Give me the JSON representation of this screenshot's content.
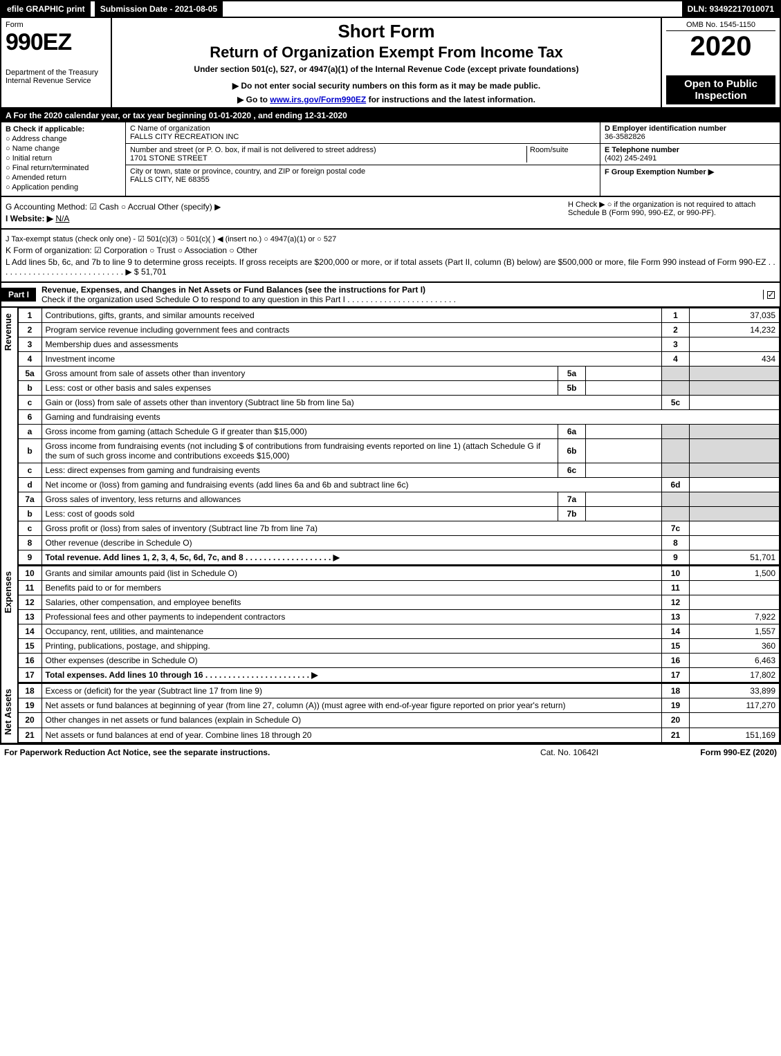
{
  "topbar": {
    "efile": "efile GRAPHIC print",
    "submission": "Submission Date - 2021-08-05",
    "dln": "DLN: 93492217010071"
  },
  "header": {
    "form_word": "Form",
    "form_number": "990EZ",
    "dept1": "Department of the Treasury",
    "dept2": "Internal Revenue Service",
    "short_form": "Short Form",
    "return_title": "Return of Organization Exempt From Income Tax",
    "under": "Under section 501(c), 527, or 4947(a)(1) of the Internal Revenue Code (except private foundations)",
    "warn": "▶ Do not enter social security numbers on this form as it may be made public.",
    "goto_pre": "▶ Go to ",
    "goto_link": "www.irs.gov/Form990EZ",
    "goto_post": " for instructions and the latest information.",
    "omb": "OMB No. 1545-1150",
    "year": "2020",
    "open": "Open to Public Inspection"
  },
  "period": "A For the 2020 calendar year, or tax year beginning 01-01-2020 , and ending 12-31-2020",
  "sectionB": {
    "header": "B  Check if applicable:",
    "items": [
      "Address change",
      "Name change",
      "Initial return",
      "Final return/terminated",
      "Amended return",
      "Application pending"
    ]
  },
  "sectionC": {
    "c_label": "C Name of organization",
    "c_value": "FALLS CITY RECREATION INC",
    "addr_label": "Number and street (or P. O. box, if mail is not delivered to street address)",
    "addr_value": "1701 STONE STREET",
    "room_label": "Room/suite",
    "city_label": "City or town, state or province, country, and ZIP or foreign postal code",
    "city_value": "FALLS CITY, NE  68355"
  },
  "sectionD": {
    "d_label": "D Employer identification number",
    "d_value": "36-3582826",
    "e_label": "E Telephone number",
    "e_value": "(402) 245-2491",
    "f_label": "F Group Exemption Number  ▶"
  },
  "meta": {
    "g": "G Accounting Method:  ☑ Cash  ○ Accrual  Other (specify) ▶ ",
    "h": "H  Check ▶  ○  if the organization is not required to attach Schedule B (Form 990, 990-EZ, or 990-PF).",
    "i_pre": "I Website: ▶",
    "i_val": "N/A",
    "j": "J Tax-exempt status (check only one) -  ☑ 501(c)(3)  ○  501(c)(  ) ◀ (insert no.)  ○  4947(a)(1) or  ○  527",
    "k": "K Form of organization:   ☑ Corporation  ○ Trust  ○ Association  ○ Other ",
    "l": "L Add lines 5b, 6c, and 7b to line 9 to determine gross receipts. If gross receipts are $200,000 or more, or if total assets (Part II, column (B) below) are $500,000 or more, file Form 990 instead of Form 990-EZ  . . . . . . . . . . . . . . . . . . . . . . . . . . . .  ▶ $ 51,701"
  },
  "partI": {
    "tag": "Part I",
    "title": "Revenue, Expenses, and Changes in Net Assets or Fund Balances (see the instructions for Part I)",
    "check_line": "Check if the organization used Schedule O to respond to any question in this Part I . . . . . . . . . . . . . . . . . . . . . . . ."
  },
  "sections": {
    "revenue": "Revenue",
    "expenses": "Expenses",
    "netassets": "Net Assets"
  },
  "rows": [
    {
      "n": "1",
      "d": "Contributions, gifts, grants, and similar amounts received",
      "r": "1",
      "v": "37,035"
    },
    {
      "n": "2",
      "d": "Program service revenue including government fees and contracts",
      "r": "2",
      "v": "14,232"
    },
    {
      "n": "3",
      "d": "Membership dues and assessments",
      "r": "3",
      "v": ""
    },
    {
      "n": "4",
      "d": "Investment income",
      "r": "4",
      "v": "434"
    },
    {
      "n": "5a",
      "d": "Gross amount from sale of assets other than inventory",
      "sr": "5a",
      "sv": "",
      "shade": true
    },
    {
      "n": "b",
      "d": "Less: cost or other basis and sales expenses",
      "sr": "5b",
      "sv": "",
      "shade": true
    },
    {
      "n": "c",
      "d": "Gain or (loss) from sale of assets other than inventory (Subtract line 5b from line 5a)",
      "r": "5c",
      "v": ""
    },
    {
      "n": "6",
      "d": "Gaming and fundraising events",
      "noval": true
    },
    {
      "n": "a",
      "d": "Gross income from gaming (attach Schedule G if greater than $15,000)",
      "sr": "6a",
      "sv": "",
      "shade": true
    },
    {
      "n": "b",
      "d": "Gross income from fundraising events (not including $                              of contributions from fundraising events reported on line 1) (attach Schedule G if the sum of such gross income and contributions exceeds $15,000)",
      "sr": "6b",
      "sv": "",
      "shade": true
    },
    {
      "n": "c",
      "d": "Less: direct expenses from gaming and fundraising events",
      "sr": "6c",
      "sv": "",
      "shade": true
    },
    {
      "n": "d",
      "d": "Net income or (loss) from gaming and fundraising events (add lines 6a and 6b and subtract line 6c)",
      "r": "6d",
      "v": ""
    },
    {
      "n": "7a",
      "d": "Gross sales of inventory, less returns and allowances",
      "sr": "7a",
      "sv": "",
      "shade": true
    },
    {
      "n": "b",
      "d": "Less: cost of goods sold",
      "sr": "7b",
      "sv": "",
      "shade": true
    },
    {
      "n": "c",
      "d": "Gross profit or (loss) from sales of inventory (Subtract line 7b from line 7a)",
      "r": "7c",
      "v": ""
    },
    {
      "n": "8",
      "d": "Other revenue (describe in Schedule O)",
      "r": "8",
      "v": ""
    },
    {
      "n": "9",
      "d": "Total revenue. Add lines 1, 2, 3, 4, 5c, 6d, 7c, and 8   . . . . . . . . . . . . . . . . . . .  ▶",
      "r": "9",
      "v": "51,701",
      "bold": true
    }
  ],
  "exp_rows": [
    {
      "n": "10",
      "d": "Grants and similar amounts paid (list in Schedule O)",
      "r": "10",
      "v": "1,500"
    },
    {
      "n": "11",
      "d": "Benefits paid to or for members",
      "r": "11",
      "v": ""
    },
    {
      "n": "12",
      "d": "Salaries, other compensation, and employee benefits",
      "r": "12",
      "v": ""
    },
    {
      "n": "13",
      "d": "Professional fees and other payments to independent contractors",
      "r": "13",
      "v": "7,922"
    },
    {
      "n": "14",
      "d": "Occupancy, rent, utilities, and maintenance",
      "r": "14",
      "v": "1,557"
    },
    {
      "n": "15",
      "d": "Printing, publications, postage, and shipping.",
      "r": "15",
      "v": "360"
    },
    {
      "n": "16",
      "d": "Other expenses (describe in Schedule O)",
      "r": "16",
      "v": "6,463"
    },
    {
      "n": "17",
      "d": "Total expenses. Add lines 10 through 16    . . . . . . . . . . . . . . . . . . . . . . .  ▶",
      "r": "17",
      "v": "17,802",
      "bold": true
    }
  ],
  "na_rows": [
    {
      "n": "18",
      "d": "Excess or (deficit) for the year (Subtract line 17 from line 9)",
      "r": "18",
      "v": "33,899"
    },
    {
      "n": "19",
      "d": "Net assets or fund balances at beginning of year (from line 27, column (A)) (must agree with end-of-year figure reported on prior year's return)",
      "r": "19",
      "v": "117,270"
    },
    {
      "n": "20",
      "d": "Other changes in net assets or fund balances (explain in Schedule O)",
      "r": "20",
      "v": ""
    },
    {
      "n": "21",
      "d": "Net assets or fund balances at end of year. Combine lines 18 through 20",
      "r": "21",
      "v": "151,169"
    }
  ],
  "footer": {
    "left": "For Paperwork Reduction Act Notice, see the separate instructions.",
    "mid": "Cat. No. 10642I",
    "right": "Form 990-EZ (2020)"
  }
}
